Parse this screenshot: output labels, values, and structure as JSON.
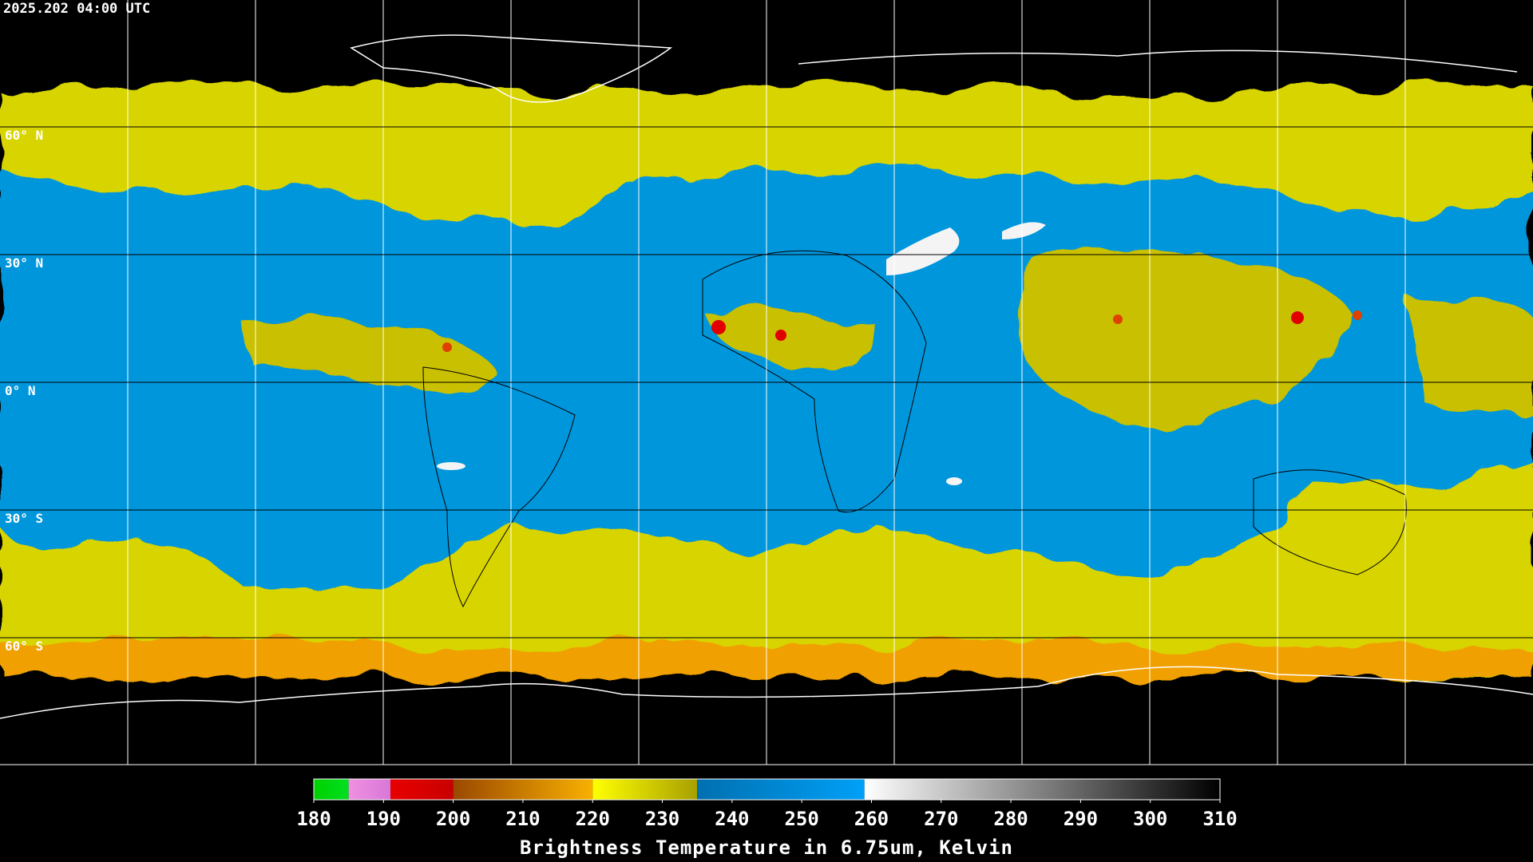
{
  "header": {
    "timestamp": "2025.202 04:00 UTC"
  },
  "map": {
    "lat_labels": [
      "60° N",
      "30° N",
      "0° N",
      "30° S",
      "60° S"
    ]
  },
  "colorbar": {
    "range": [
      180,
      310
    ],
    "ticks": [
      180,
      190,
      200,
      210,
      220,
      230,
      240,
      250,
      260,
      270,
      280,
      290,
      300,
      310
    ],
    "segments": [
      {
        "from": 180,
        "to": 185,
        "colors": [
          "#00d000",
          "#00e020"
        ]
      },
      {
        "from": 185,
        "to": 191,
        "colors": [
          "#f090e0",
          "#d878d8"
        ]
      },
      {
        "from": 191,
        "to": 200,
        "colors": [
          "#e80000",
          "#c80000"
        ]
      },
      {
        "from": 200,
        "to": 220,
        "colors": [
          "#9a4800",
          "#f8b000"
        ]
      },
      {
        "from": 220,
        "to": 235,
        "colors": [
          "#ffff00",
          "#a8a000"
        ]
      },
      {
        "from": 235,
        "to": 259,
        "colors": [
          "#0070b0",
          "#00a0f8"
        ]
      },
      {
        "from": 259,
        "to": 310,
        "colors": [
          "#ffffff",
          "#000000"
        ]
      }
    ],
    "title": "Brightness Temperature in 6.75um, Kelvin"
  }
}
